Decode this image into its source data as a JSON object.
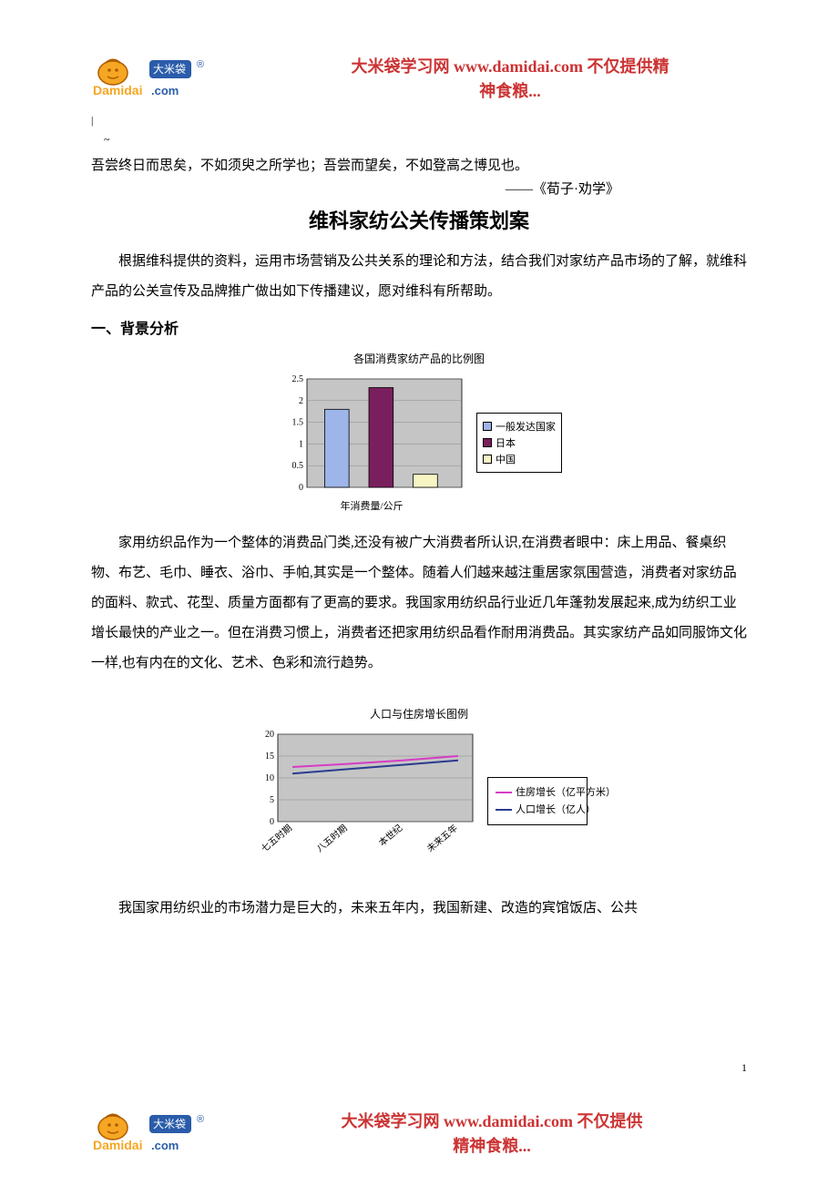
{
  "header": {
    "site_name": "大米袋学习网",
    "site_url": "www.damidai.com",
    "tagline_line1": " 不仅提供精",
    "tagline_line2": "神食粮...",
    "logo_text_main": "Damidai",
    "logo_text_sub": "大米袋",
    "logo_dom": ".com",
    "logo_badge": "®",
    "logo_colors": {
      "bag": "#f5a623",
      "tie": "#b05c00",
      "damidai": "#f5a623",
      "sub": "#2a5caa",
      "dom": "#2a5caa",
      "badge": "#2a5caa"
    }
  },
  "cursor": {
    "mark1": "|",
    "mark2": "~"
  },
  "quote": {
    "text": "吾尝终日而思矣，不如须臾之所学也；吾尝而望矣，不如登高之博见也。",
    "source": "——《荀子·劝学》"
  },
  "document": {
    "title": "维科家纺公关传播策划案",
    "intro": "根据维科提供的资料，运用市场营销及公共关系的理论和方法，结合我们对家纺产品市场的了解，就维科产品的公关宣传及品牌推广做出如下传播建议，愿对维科有所帮助。"
  },
  "section1": {
    "heading": "一、背景分析"
  },
  "chart1": {
    "type": "bar",
    "title": "各国消费家纺产品的比例图",
    "categories": [
      "一般发达国家",
      "日本",
      "中国"
    ],
    "values": [
      1.8,
      2.3,
      0.3
    ],
    "bar_colors": [
      "#9db5e8",
      "#7a1f5e",
      "#f8f5c4"
    ],
    "ylim": [
      0,
      2.5
    ],
    "ytick_step": 0.5,
    "yticks": [
      "0",
      "0.5",
      "1",
      "1.5",
      "2",
      "2.5"
    ],
    "xlabel": "年消费量/公斤",
    "plot_bg": "#c5c5c5",
    "grid_color": "#888888",
    "legend": [
      "一般发达国家",
      "日本",
      "中国"
    ]
  },
  "para1": "家用纺织品作为一个整体的消费品门类,还没有被广大消费者所认识,在消费者眼中：床上用品、餐桌织物、布艺、毛巾、睡衣、浴巾、手帕,其实是一个整体。随着人们越来越注重居家氛围营造，消费者对家纺品的面料、款式、花型、质量方面都有了更高的要求。我国家用纺织品行业近几年蓬勃发展起来,成为纺织工业增长最快的产业之一。但在消费习惯上，消费者还把家用纺织品看作耐用消费品。其实家纺产品如同服饰文化一样,也有内在的文化、艺术、色彩和流行趋势。",
  "chart2": {
    "type": "line",
    "title": "人口与住房增长图例",
    "x_categories": [
      "七五时期",
      "八五时期",
      "本世纪",
      "未来五年"
    ],
    "series": [
      {
        "name": "住房增长（亿平方米）",
        "color": "#d63cc4",
        "values": [
          12.5,
          13.2,
          14.0,
          15.0
        ]
      },
      {
        "name": "人口增长（亿人）",
        "color": "#2a3b8f",
        "values": [
          11.0,
          12.0,
          13.0,
          14.0
        ]
      }
    ],
    "ylim": [
      0,
      20
    ],
    "ytick_step": 5,
    "yticks": [
      "0",
      "5",
      "10",
      "15",
      "20"
    ],
    "plot_bg": "#c5c5c5",
    "grid_color": "#888888"
  },
  "para2": "我国家用纺织业的市场潜力是巨大的，未来五年内，我国新建、改造的宾馆饭店、公共",
  "footer": {
    "site_name": "大米袋学习网",
    "site_url": "www.damidai.com",
    "tagline_line1": " 不仅提供",
    "tagline_line2": "精神食粮..."
  },
  "pagenum": "1"
}
